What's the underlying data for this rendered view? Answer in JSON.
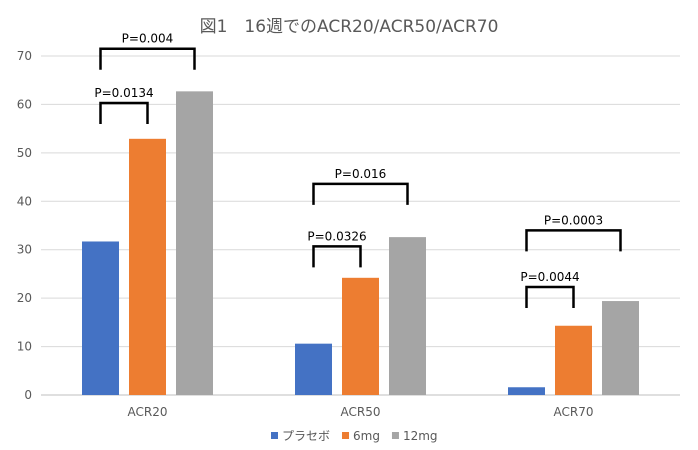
{
  "chart_data": {
    "type": "bar",
    "title": "図1　16週でのACR20/ACR50/ACR70",
    "xlabel": "",
    "ylabel": "",
    "categories": [
      "ACR20",
      "ACR50",
      "ACR70"
    ],
    "ylim": [
      0,
      70
    ],
    "yticks": [
      0,
      10,
      20,
      30,
      40,
      50,
      60,
      70
    ],
    "grid": true,
    "legend_position": "bottom",
    "series": [
      {
        "name": "プラセボ",
        "color": "#4472C4",
        "values": [
          31.7,
          10.6,
          1.6
        ]
      },
      {
        "name": "6mg",
        "color": "#ED7D31",
        "values": [
          52.9,
          24.2,
          14.3
        ]
      },
      {
        "name": "12mg",
        "color": "#A5A5A5",
        "values": [
          62.7,
          32.6,
          19.4
        ]
      }
    ],
    "annotations": [
      {
        "category": 0,
        "from_series": 0,
        "to_series": 2,
        "level": 71.5,
        "text": "P=0.004"
      },
      {
        "category": 0,
        "from_series": 0,
        "to_series": 1,
        "level": 60.3,
        "text": "P=0.0134"
      },
      {
        "category": 1,
        "from_series": 0,
        "to_series": 2,
        "level": 43.6,
        "text": "P=0.016"
      },
      {
        "category": 1,
        "from_series": 0,
        "to_series": 1,
        "level": 30.7,
        "text": "P=0.0326"
      },
      {
        "category": 2,
        "from_series": 0,
        "to_series": 2,
        "level": 34.0,
        "text": "P=0.0003"
      },
      {
        "category": 2,
        "from_series": 0,
        "to_series": 1,
        "level": 22.3,
        "text": "P=0.0044"
      }
    ]
  }
}
